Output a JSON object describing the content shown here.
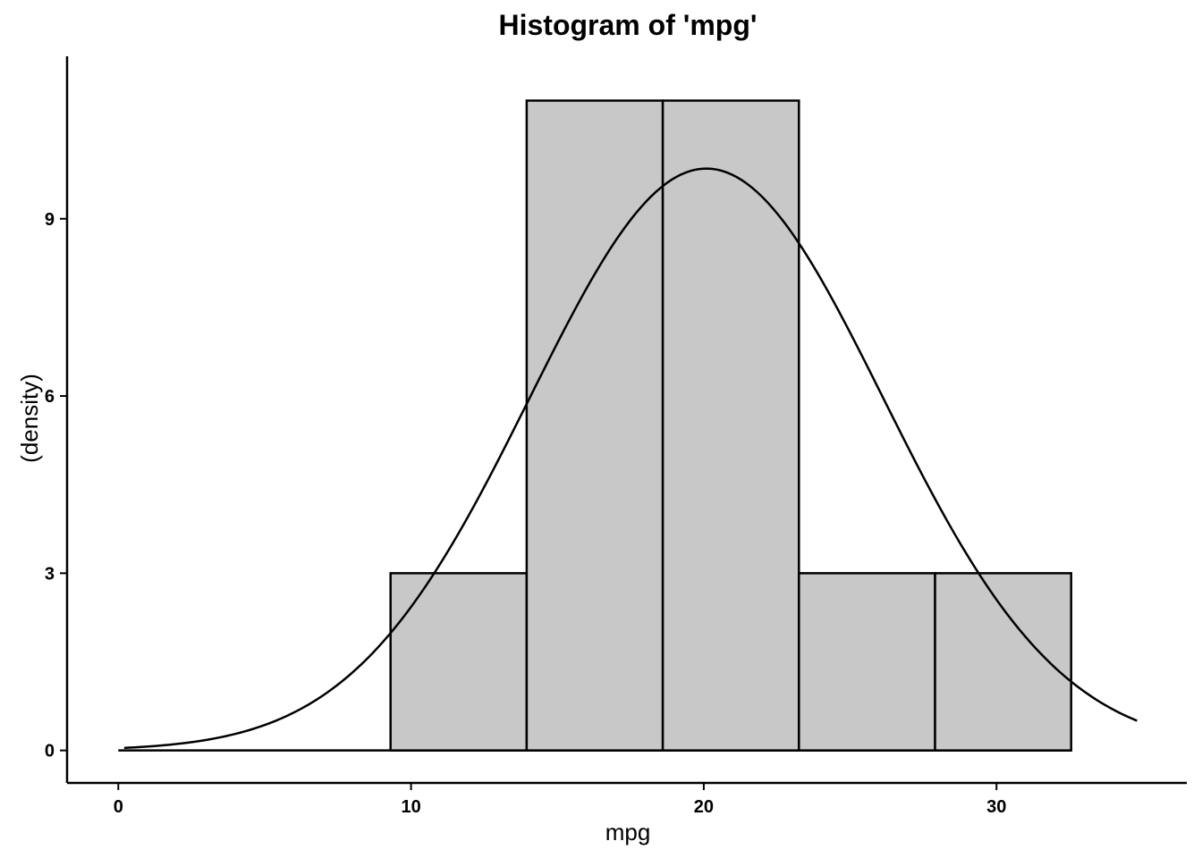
{
  "chart_data": {
    "type": "bar",
    "title": "Histogram of 'mpg'",
    "xlabel": "mpg",
    "ylabel": "(density)",
    "bins": [
      {
        "start": 9.3,
        "end": 13.95,
        "value": 3
      },
      {
        "start": 13.95,
        "end": 18.6,
        "value": 11
      },
      {
        "start": 18.6,
        "end": 23.25,
        "value": 11
      },
      {
        "start": 23.25,
        "end": 27.9,
        "value": 3
      },
      {
        "start": 27.9,
        "end": 32.55,
        "value": 3
      }
    ],
    "density_curve": {
      "type": "normal",
      "mean": 20.09,
      "sd": 6.03,
      "peak": 9.85,
      "x_range": [
        0.2,
        34.8
      ]
    },
    "xlim": [
      -1.75,
      36.5
    ],
    "ylim": [
      -0.55,
      11.75
    ],
    "x_ticks": [
      0,
      10,
      20,
      30
    ],
    "x_tick_labels": [
      "0",
      "10",
      "20",
      "30"
    ],
    "y_ticks": [
      0,
      3,
      6,
      9
    ],
    "y_tick_labels": [
      "0",
      "3",
      "6",
      "9"
    ],
    "grid": false,
    "colors": {
      "bar_fill": "#c8c8c8",
      "bar_edge": "#000000",
      "curve": "#000000"
    }
  }
}
